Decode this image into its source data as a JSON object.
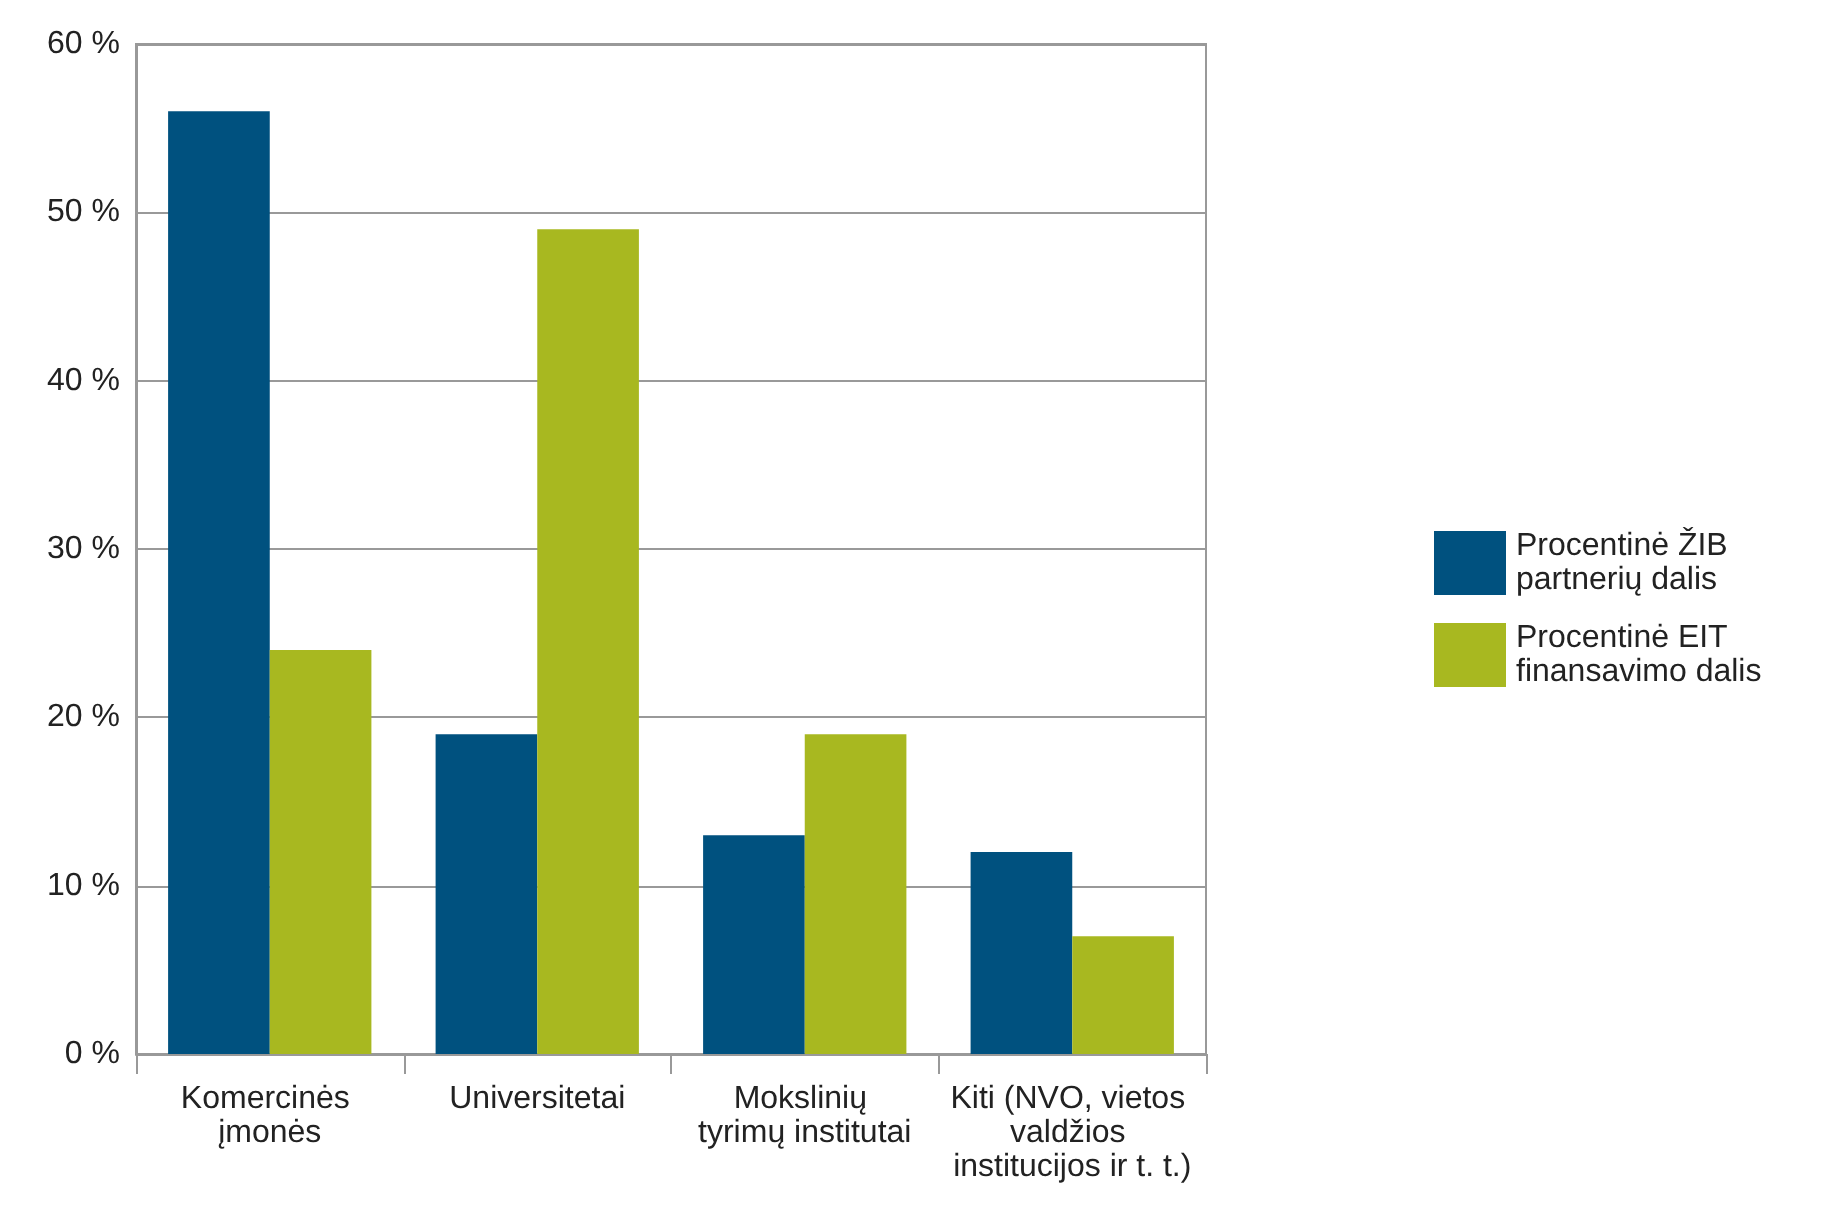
{
  "chart_data": {
    "type": "bar",
    "categories": [
      "Komercinės įmonės",
      "Universitetai",
      "Mokslinių tyrimų institutai",
      "Kiti (NVO, vietos valdžios institucijos ir t. t.)"
    ],
    "series": [
      {
        "name": "Procentinė ŽIB partnerių dalis",
        "color": "#00517f",
        "values": [
          56,
          19,
          13,
          12
        ]
      },
      {
        "name": "Procentinė EIT finansavimo dalis",
        "color": "#a8b820",
        "values": [
          24,
          49,
          19,
          7
        ]
      }
    ],
    "ylim": [
      0,
      60
    ],
    "yticks": [
      {
        "value": 0,
        "label": "0 %"
      },
      {
        "value": 10,
        "label": "10 %"
      },
      {
        "value": 20,
        "label": "20 %"
      },
      {
        "value": 30,
        "label": "30 %"
      },
      {
        "value": 40,
        "label": "40 %"
      },
      {
        "value": 50,
        "label": "50 %"
      },
      {
        "value": 60,
        "label": "60 %"
      }
    ],
    "grid": "y",
    "legend": "right"
  }
}
